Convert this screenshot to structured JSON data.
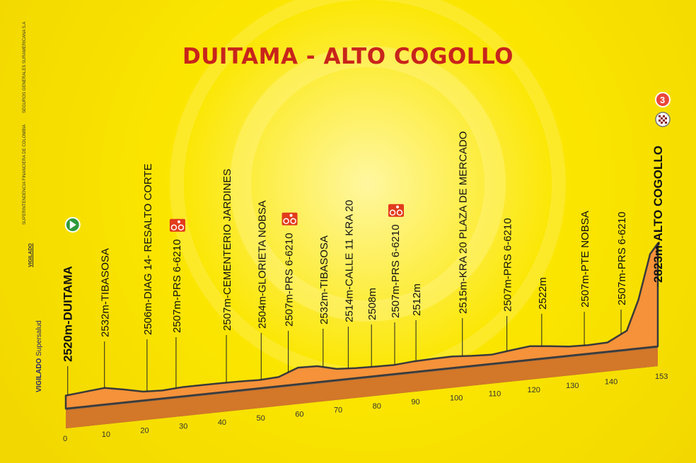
{
  "title": "DUITAMA - ALTO COGOLLO",
  "sidebar": {
    "vigilado_bold": "VIGILADO",
    "vigilado_brand": "Supersalud",
    "vigilado_small": "VIGILADO",
    "superintendencia": "SUPERINTENDENCIA FINANCIERA DE COLOMBIA",
    "seguros": "SEGUROS GENERALES SURAMERICANA S.A"
  },
  "colors": {
    "background": "#fbe600",
    "profile_fill": "#f5923a",
    "profile_side": "#5a5a5a",
    "title": "#c8241b",
    "sprint_badge": "#e23b1c",
    "start_badge": "#2f9a3c"
  },
  "chart_data": {
    "type": "area",
    "xlabel": "",
    "ylabel": "",
    "x_ticks": [
      0,
      10,
      20,
      30,
      40,
      50,
      60,
      70,
      80,
      90,
      100,
      110,
      120,
      130,
      140,
      153
    ],
    "xlim": [
      0,
      153
    ],
    "profile": [
      [
        0,
        2520
      ],
      [
        5,
        2526
      ],
      [
        10,
        2532
      ],
      [
        15,
        2520
      ],
      [
        20,
        2506
      ],
      [
        25,
        2503
      ],
      [
        30,
        2507
      ],
      [
        35,
        2507
      ],
      [
        40,
        2507
      ],
      [
        45,
        2506
      ],
      [
        50,
        2504
      ],
      [
        55,
        2507
      ],
      [
        60,
        2532
      ],
      [
        65,
        2530
      ],
      [
        70,
        2514
      ],
      [
        75,
        2510
      ],
      [
        80,
        2508
      ],
      [
        85,
        2507
      ],
      [
        90,
        2512
      ],
      [
        95,
        2514
      ],
      [
        100,
        2515
      ],
      [
        105,
        2510
      ],
      [
        110,
        2507
      ],
      [
        115,
        2515
      ],
      [
        120,
        2522
      ],
      [
        125,
        2515
      ],
      [
        130,
        2507
      ],
      [
        135,
        2505
      ],
      [
        140,
        2507
      ],
      [
        145,
        2540
      ],
      [
        148,
        2640
      ],
      [
        151,
        2790
      ],
      [
        153,
        2823
      ]
    ],
    "waypoints": [
      {
        "km": 0.5,
        "label": "2520m-DUITAMA",
        "bold": true,
        "icon": "start"
      },
      {
        "km": 10,
        "label": "2532m-TIBASOSA"
      },
      {
        "km": 21,
        "label": "2506m-DIAG 14- RESALTO CORTE"
      },
      {
        "km": 28.5,
        "label": "2507m-PRS 6-6210",
        "icon": "sprint"
      },
      {
        "km": 41.5,
        "label": "2507m-CEMENTERIO JARDINES"
      },
      {
        "km": 50.5,
        "label": "2504m-GLORIETA NOBSA"
      },
      {
        "km": 57.5,
        "label": "2507m-PRS 6-6210",
        "icon": "sprint"
      },
      {
        "km": 66.5,
        "label": "2532m-TIBASOSA"
      },
      {
        "km": 73,
        "label": "2514m-CALLE 11 KRA 20"
      },
      {
        "km": 79,
        "label": "2508m"
      },
      {
        "km": 85,
        "label": "2507m-PRS 6-6210",
        "icon": "sprint"
      },
      {
        "km": 90.5,
        "label": "2512m"
      },
      {
        "km": 102.5,
        "label": "2515m-KRA 20 PLAZA DE MERCADO"
      },
      {
        "km": 114,
        "label": "2507m-PRS 6-6210"
      },
      {
        "km": 123,
        "label": "2522m"
      },
      {
        "km": 134,
        "label": "2507m-PTE NOBSA"
      },
      {
        "km": 143.5,
        "label": "2507m-PRS 6-6210"
      },
      {
        "km": 153,
        "label": "2823m-ALTO COGOLLO",
        "bold": true,
        "icon": "finish",
        "category": "3"
      }
    ]
  }
}
